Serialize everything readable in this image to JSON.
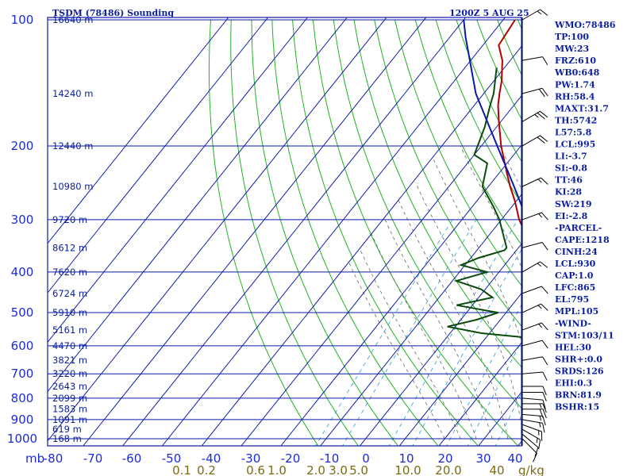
{
  "header": {
    "title": "TSDM (78486) Sounding",
    "datetime": "1200Z  5 AUG 25"
  },
  "chart_data": {
    "type": "line",
    "subtype": "skew-T log-P sounding",
    "pressure_unit_label": "mb",
    "pressure_levels": [
      100,
      200,
      300,
      400,
      500,
      600,
      700,
      800,
      900,
      1000
    ],
    "height_ticks": [
      {
        "p": 100,
        "label": "16640 m"
      },
      {
        "p": 150,
        "label": "14240 m"
      },
      {
        "p": 200,
        "label": "12440 m"
      },
      {
        "p": 250,
        "label": "10980 m"
      },
      {
        "p": 300,
        "label": "9720 m"
      },
      {
        "p": 350,
        "label": "8612 m"
      },
      {
        "p": 400,
        "label": "7620 m"
      },
      {
        "p": 450,
        "label": "6724 m"
      },
      {
        "p": 500,
        "label": "5910 m"
      },
      {
        "p": 550,
        "label": "5161 m"
      },
      {
        "p": 600,
        "label": "4470 m"
      },
      {
        "p": 650,
        "label": "3821 m"
      },
      {
        "p": 700,
        "label": "3220 m"
      },
      {
        "p": 750,
        "label": "2643 m"
      },
      {
        "p": 800,
        "label": "2099 m"
      },
      {
        "p": 850,
        "label": "1583 m"
      },
      {
        "p": 900,
        "label": "1091 m"
      },
      {
        "p": 950,
        "label": "619 m"
      },
      {
        "p": 1000,
        "label": "168 m"
      }
    ],
    "temperature_ticks": [
      -80,
      -70,
      -60,
      -50,
      -40,
      -30,
      -20,
      -10,
      0,
      10,
      20,
      30,
      40
    ],
    "temperature_tick_labels": [
      "-80",
      "-70",
      "-60",
      "-50",
      "-40",
      "-30",
      "-20",
      "-10",
      "0",
      "10",
      "20",
      "30",
      "40"
    ],
    "mixing_ratio_labels": [
      "0.1",
      "0.2",
      "0.6",
      "1.0",
      "2.0",
      "3.0",
      "5.0",
      "10.0",
      "20.0",
      "40",
      "g/kg"
    ],
    "series": [
      {
        "role": "temperature",
        "color": "#b00000",
        "points": [
          [
            1000,
            26.5
          ],
          [
            975,
            24.5
          ],
          [
            950,
            22.8
          ],
          [
            925,
            22.0
          ],
          [
            900,
            19.7
          ],
          [
            875,
            18.2
          ],
          [
            850,
            16.5
          ],
          [
            800,
            13.2
          ],
          [
            750,
            9.8
          ],
          [
            700,
            6.5
          ],
          [
            650,
            1.8
          ],
          [
            600,
            -3.5
          ],
          [
            575,
            -5.5
          ],
          [
            550,
            -6.5
          ],
          [
            530,
            -7.2
          ],
          [
            500,
            -10.5
          ],
          [
            450,
            -14.5
          ],
          [
            400,
            -19.0
          ],
          [
            370,
            -24.5
          ],
          [
            330,
            -30.0
          ],
          [
            300,
            -35.5
          ],
          [
            270,
            -40.5
          ],
          [
            250,
            -44.5
          ],
          [
            230,
            -48.5
          ],
          [
            200,
            -55.0
          ],
          [
            175,
            -60.5
          ],
          [
            160,
            -64.0
          ],
          [
            150,
            -66.0
          ],
          [
            140,
            -68.0
          ],
          [
            125,
            -72.0
          ],
          [
            115,
            -76.0
          ],
          [
            100,
            -77.0
          ]
        ]
      },
      {
        "role": "dewpoint",
        "color": "#0a4a0a",
        "points": [
          [
            1000,
            22.0
          ],
          [
            975,
            21.5
          ],
          [
            950,
            20.5
          ],
          [
            925,
            17.5
          ],
          [
            900,
            17.0
          ],
          [
            875,
            16.0
          ],
          [
            850,
            14.5
          ],
          [
            820,
            13.0
          ],
          [
            800,
            10.0
          ],
          [
            750,
            5.5
          ],
          [
            720,
            1.5
          ],
          [
            680,
            0.5
          ],
          [
            640,
            -3.0
          ],
          [
            600,
            -7.0
          ],
          [
            575,
            -8.5
          ],
          [
            560,
            -22.0
          ],
          [
            540,
            -32.0
          ],
          [
            520,
            -26.0
          ],
          [
            500,
            -22.0
          ],
          [
            480,
            -34.0
          ],
          [
            460,
            -26.5
          ],
          [
            440,
            -31.0
          ],
          [
            420,
            -39.0
          ],
          [
            400,
            -33.0
          ],
          [
            385,
            -41.0
          ],
          [
            370,
            -38.0
          ],
          [
            355,
            -33.0
          ],
          [
            350,
            -33.0
          ],
          [
            300,
            -40.5
          ],
          [
            280,
            -44.5
          ],
          [
            250,
            -51.5
          ],
          [
            220,
            -55.0
          ],
          [
            210,
            -60.0
          ],
          [
            180,
            -63.0
          ],
          [
            160,
            -66.0
          ],
          [
            150,
            -67.5
          ],
          [
            130,
            -72.0
          ]
        ]
      },
      {
        "role": "parcel",
        "color": "#0a1aa8",
        "points": [
          [
            1000,
            28.0
          ],
          [
            975,
            25.5
          ],
          [
            950,
            23.2
          ],
          [
            930,
            21.3
          ],
          [
            900,
            19.8
          ],
          [
            865,
            18.0
          ],
          [
            850,
            17.3
          ],
          [
            800,
            14.8
          ],
          [
            700,
            9.2
          ],
          [
            600,
            2.6
          ],
          [
            500,
            -5.8
          ],
          [
            400,
            -17.0
          ],
          [
            300,
            -33.5
          ],
          [
            250,
            -43.5
          ],
          [
            200,
            -56.0
          ],
          [
            150,
            -72.0
          ],
          [
            110,
            -86.0
          ],
          [
            100,
            -90.0
          ]
        ]
      }
    ],
    "winds": [
      {
        "p": 1000,
        "dir": 135,
        "spd": 10
      },
      {
        "p": 975,
        "dir": 130,
        "spd": 10
      },
      {
        "p": 950,
        "dir": 120,
        "spd": 15
      },
      {
        "p": 925,
        "dir": 110,
        "spd": 15
      },
      {
        "p": 900,
        "dir": 100,
        "spd": 15
      },
      {
        "p": 875,
        "dir": 95,
        "spd": 15
      },
      {
        "p": 850,
        "dir": 90,
        "spd": 20
      },
      {
        "p": 825,
        "dir": 90,
        "spd": 15
      },
      {
        "p": 800,
        "dir": 95,
        "spd": 10
      },
      {
        "p": 775,
        "dir": 90,
        "spd": 10
      },
      {
        "p": 750,
        "dir": 90,
        "spd": 10
      },
      {
        "p": 700,
        "dir": 85,
        "spd": 10
      },
      {
        "p": 650,
        "dir": 80,
        "spd": 10
      },
      {
        "p": 600,
        "dir": 75,
        "spd": 10
      },
      {
        "p": 550,
        "dir": 70,
        "spd": 15
      },
      {
        "p": 500,
        "dir": 65,
        "spd": 15
      },
      {
        "p": 450,
        "dir": 70,
        "spd": 10
      },
      {
        "p": 400,
        "dir": 60,
        "spd": 15
      },
      {
        "p": 350,
        "dir": 75,
        "spd": 10
      },
      {
        "p": 300,
        "dir": 70,
        "spd": 15
      },
      {
        "p": 250,
        "dir": 65,
        "spd": 15
      },
      {
        "p": 200,
        "dir": 60,
        "spd": 20
      },
      {
        "p": 175,
        "dir": 60,
        "spd": 25
      },
      {
        "p": 150,
        "dir": 75,
        "spd": 20
      },
      {
        "p": 125,
        "dir": 80,
        "spd": 10
      },
      {
        "p": 100,
        "dir": 60,
        "spd": 15
      }
    ],
    "colors": {
      "frame": "#0a1aa8",
      "dry_adiabat": "#22b022",
      "moist_adiabat": "#666666",
      "mixing_ratio": "#2a9ad8",
      "mixing_label": "#7a6a12",
      "text": "#0b1f9e"
    }
  },
  "stats": [
    "WMO:78486",
    "TP:100",
    "MW:23",
    "FRZ:610",
    "WB0:648",
    "PW:1.74",
    "RH:58.4",
    "MAXT:31.7",
    "TH:5742",
    "L57:5.8",
    "LCL:995",
    "LI:-3.7",
    "SI:-0.8",
    "TT:46",
    "KI:28",
    "SW:219",
    "EI:-2.8",
    "-PARCEL-",
    "CAPE:1218",
    "CINH:24",
    "LCL:930",
    "CAP:1.0",
    "LFC:865",
    "EL:795",
    "MPL:105",
    "-WIND-",
    "STM:103/11",
    "HEL:30",
    "SHR+:0.0",
    "SRDS:126",
    "EHI:0.3",
    "BRN:81.9",
    "BSHR:15"
  ]
}
